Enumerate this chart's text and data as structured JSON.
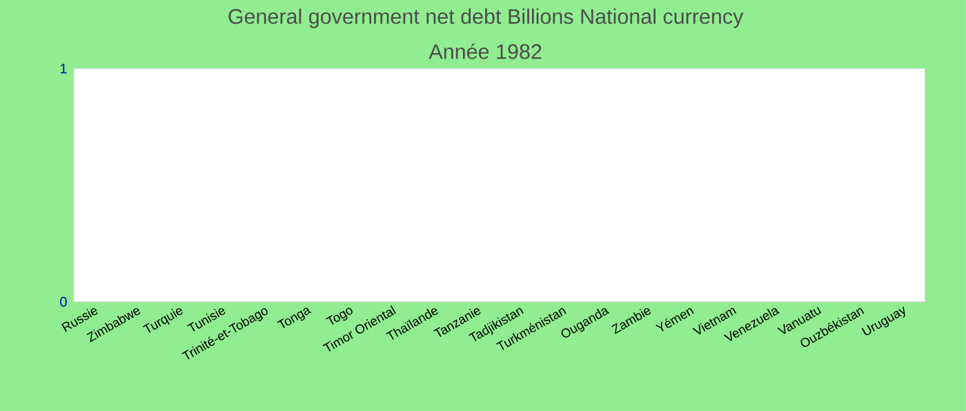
{
  "chart_data": {
    "type": "bar",
    "title": "General government net debt Billions National currency",
    "subtitle": "Année 1982",
    "categories": [
      "Russie",
      "Zimbabwe",
      "Turquie",
      "Tunisie",
      "Trinité-et-Tobago",
      "Tonga",
      "Togo",
      "Timor Oriental",
      "Thaïlande",
      "Tanzanie",
      "Tadjikistan",
      "Turkménistan",
      "Ouganda",
      "Zambie",
      "Yémen",
      "Vietnam",
      "Venezuela",
      "Vanuatu",
      "Ouzbékistan",
      "Uruguay"
    ],
    "values": [
      null,
      null,
      null,
      null,
      null,
      null,
      null,
      null,
      null,
      null,
      null,
      null,
      null,
      null,
      null,
      null,
      null,
      null,
      null,
      null
    ],
    "ylim": [
      0,
      1
    ],
    "yticks": [
      0,
      1
    ]
  }
}
